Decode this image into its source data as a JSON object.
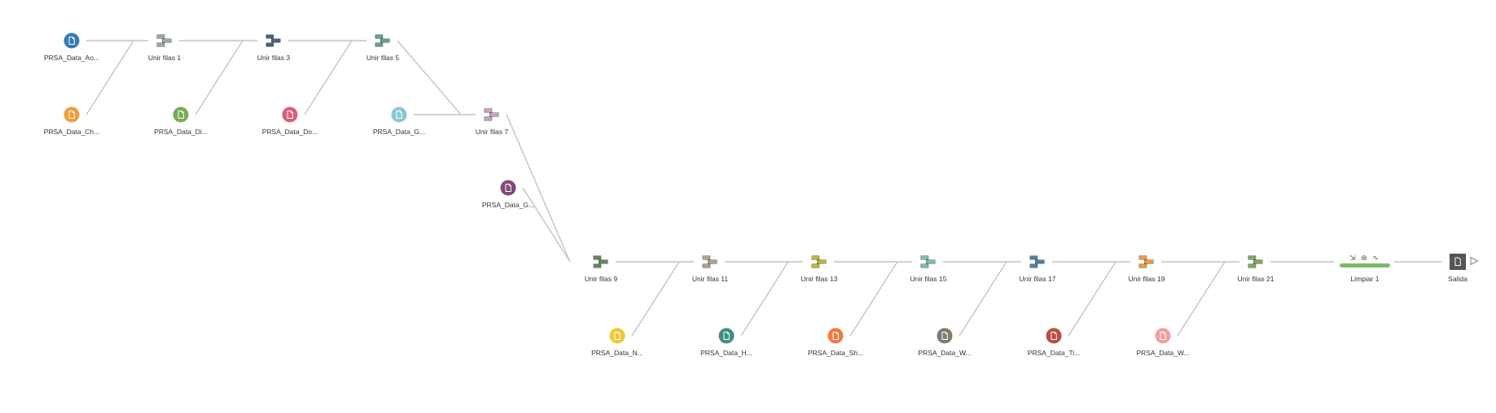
{
  "flow": {
    "nodes": [
      {
        "id": "n1",
        "type": "input",
        "label": "PRSA_Data_Ao...",
        "color": "#3a7ab3"
      },
      {
        "id": "n2",
        "type": "input",
        "label": "PRSA_Data_Ch...",
        "color": "#f19c38"
      },
      {
        "id": "n3",
        "type": "union",
        "label": "Unir filas 1",
        "color": "#9aaa9b"
      },
      {
        "id": "n4",
        "type": "input",
        "label": "PRSA_Data_Di...",
        "color": "#79ad54"
      },
      {
        "id": "n5",
        "type": "union",
        "label": "Unir filas 3",
        "color": "#4f6076"
      },
      {
        "id": "n6",
        "type": "input",
        "label": "PRSA_Data_Do...",
        "color": "#d95f78"
      },
      {
        "id": "n7",
        "type": "union",
        "label": "Unir filas 5",
        "color": "#5fa492"
      },
      {
        "id": "n8",
        "type": "input",
        "label": "PRSA_Data_G...",
        "color": "#8cc8ce"
      },
      {
        "id": "n9",
        "type": "union",
        "label": "Unir filas 7",
        "color": "#c9a0c1"
      },
      {
        "id": "n10",
        "type": "input",
        "label": "PRSA_Data_G...",
        "color": "#7e4c78"
      },
      {
        "id": "n11",
        "type": "union",
        "label": "Unir filas 9",
        "color": "#5e8a5c"
      },
      {
        "id": "n12",
        "type": "input",
        "label": "PRSA_Data_N...",
        "color": "#f0c92d"
      },
      {
        "id": "n13",
        "type": "union",
        "label": "Unir filas 11",
        "color": "#b0a192"
      },
      {
        "id": "n14",
        "type": "input",
        "label": "PRSA_Data_H...",
        "color": "#3f8f88"
      },
      {
        "id": "n15",
        "type": "union",
        "label": "Unir filas 13",
        "color": "#bfb63a"
      },
      {
        "id": "n16",
        "type": "input",
        "label": "PRSA_Data_Sh...",
        "color": "#f07b3f"
      },
      {
        "id": "n17",
        "type": "union",
        "label": "Unir filas 15",
        "color": "#7bbfaf"
      },
      {
        "id": "n18",
        "type": "input",
        "label": "PRSA_Data_W...",
        "color": "#857a70"
      },
      {
        "id": "n19",
        "type": "union",
        "label": "Unir filas 17",
        "color": "#4a80a8"
      },
      {
        "id": "n20",
        "type": "input",
        "label": "PRSA_Data_Ti...",
        "color": "#b8503f"
      },
      {
        "id": "n21",
        "type": "union",
        "label": "Unir filas 19",
        "color": "#ee9b3a"
      },
      {
        "id": "n22",
        "type": "input",
        "label": "PRSA_Data_W...",
        "color": "#f29f9f"
      },
      {
        "id": "n23",
        "type": "union",
        "label": "Unir filas 21",
        "color": "#7ea860"
      },
      {
        "id": "n24",
        "type": "clean",
        "label": "Limpiar 1",
        "color": "#7fba66",
        "icons": "⇲ ⊛ ∿"
      },
      {
        "id": "n25",
        "type": "output",
        "label": "Salida",
        "color": "#555555"
      }
    ],
    "edges": [
      [
        "n1",
        "n3"
      ],
      [
        "n2",
        "n3"
      ],
      [
        "n3",
        "n5"
      ],
      [
        "n4",
        "n5"
      ],
      [
        "n5",
        "n7"
      ],
      [
        "n6",
        "n7"
      ],
      [
        "n7",
        "n9"
      ],
      [
        "n8",
        "n9"
      ],
      [
        "n9",
        "n11"
      ],
      [
        "n10",
        "n11"
      ],
      [
        "n11",
        "n13"
      ],
      [
        "n12",
        "n13"
      ],
      [
        "n13",
        "n15"
      ],
      [
        "n14",
        "n15"
      ],
      [
        "n15",
        "n17"
      ],
      [
        "n16",
        "n17"
      ],
      [
        "n17",
        "n19"
      ],
      [
        "n18",
        "n19"
      ],
      [
        "n19",
        "n21"
      ],
      [
        "n20",
        "n21"
      ],
      [
        "n21",
        "n23"
      ],
      [
        "n22",
        "n23"
      ],
      [
        "n23",
        "n24"
      ],
      [
        "n24",
        "n25"
      ]
    ],
    "run_icon": "play-icon"
  }
}
